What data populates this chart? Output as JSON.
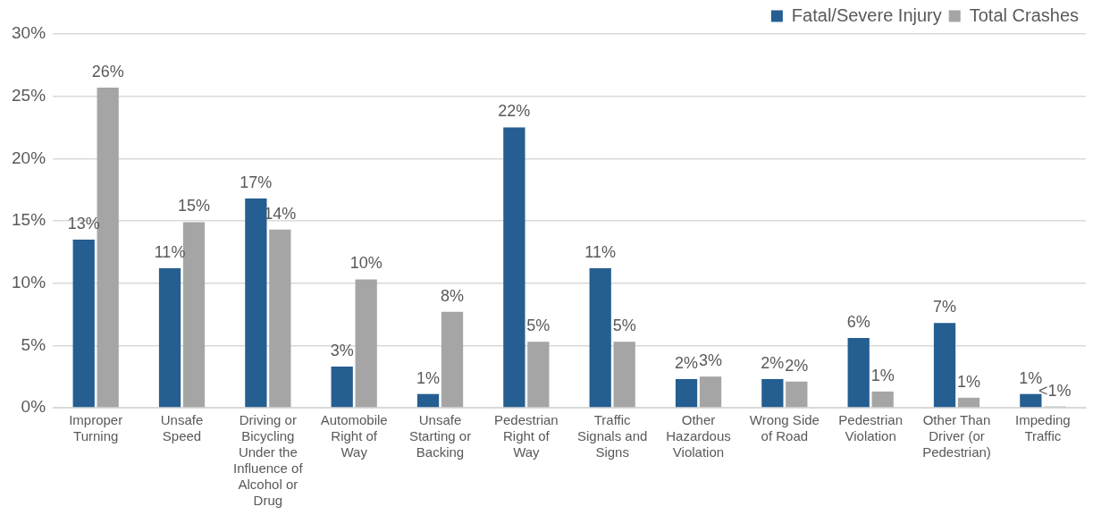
{
  "chart_data": {
    "type": "bar",
    "categories": [
      "Improper Turning",
      "Unsafe Speed",
      "Driving or Bicycling Under the Influence of Alcohol or Drug",
      "Automobile Right of Way",
      "Unsafe Starting or Backing",
      "Pedestrian Right of Way",
      "Traffic Signals and Signs",
      "Other Hazardous Violation",
      "Wrong Side of Road",
      "Pedestrian Violation",
      "Other Than Driver (or Pedestrian)",
      "Impeding Traffic"
    ],
    "series": [
      {
        "name": "Fatal/Severe Injury",
        "color": "#255e91",
        "values": [
          13.5,
          11.2,
          16.8,
          3.3,
          1.1,
          22.5,
          11.2,
          2.3,
          2.3,
          5.6,
          6.8,
          1.1
        ],
        "value_labels": [
          "13%",
          "11%",
          "17%",
          "3%",
          "1%",
          "22%",
          "11%",
          "2%",
          "2%",
          "6%",
          "7%",
          "1%"
        ]
      },
      {
        "name": "Total Crashes",
        "color": "#a5a5a5",
        "values": [
          25.7,
          14.9,
          14.3,
          10.3,
          7.7,
          5.3,
          5.3,
          2.5,
          2.1,
          1.3,
          0.8,
          0.1
        ],
        "value_labels": [
          "26%",
          "15%",
          "14%",
          "10%",
          "8%",
          "5%",
          "5%",
          "3%",
          "2%",
          "1%",
          "1%",
          "<1%"
        ]
      }
    ],
    "ylim": [
      0,
      30
    ],
    "yticks": [
      {
        "value": 0,
        "label": "0%"
      },
      {
        "value": 5,
        "label": "5%"
      },
      {
        "value": 10,
        "label": "10%"
      },
      {
        "value": 15,
        "label": "15%"
      },
      {
        "value": 20,
        "label": "20%"
      },
      {
        "value": 25,
        "label": "25%"
      },
      {
        "value": 30,
        "label": "30%"
      }
    ],
    "grid": "y",
    "legend": "top right"
  }
}
